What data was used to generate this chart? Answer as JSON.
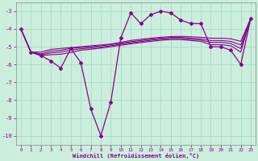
{
  "xlabel": "Windchill (Refroidissement éolien,°C)",
  "background_color": "#cceedd",
  "grid_color": "#aaddcc",
  "line_color": "#880088",
  "x_data": [
    0,
    1,
    2,
    3,
    4,
    5,
    6,
    7,
    8,
    9,
    10,
    11,
    12,
    13,
    14,
    15,
    16,
    17,
    18,
    19,
    20,
    21,
    22,
    23
  ],
  "y_main": [
    -4.0,
    -5.3,
    -5.5,
    -5.8,
    -6.2,
    -5.1,
    -5.9,
    -8.5,
    -10.0,
    -8.1,
    -4.5,
    -3.1,
    -3.7,
    -3.2,
    -3.0,
    -3.1,
    -3.5,
    -3.7,
    -3.7,
    -5.0,
    -5.0,
    -5.2,
    -6.0,
    -3.4
  ],
  "reg_lines": [
    [
      -4.0,
      -5.3,
      -5.3,
      -5.15,
      -5.1,
      -5.05,
      -5.0,
      -4.95,
      -4.9,
      -4.85,
      -4.75,
      -4.65,
      -4.58,
      -4.52,
      -4.47,
      -4.43,
      -4.42,
      -4.44,
      -4.47,
      -4.52,
      -4.52,
      -4.55,
      -4.7,
      -3.4
    ],
    [
      -4.0,
      -5.3,
      -5.4,
      -5.25,
      -5.2,
      -5.1,
      -5.05,
      -5.0,
      -4.95,
      -4.88,
      -4.8,
      -4.72,
      -4.65,
      -4.58,
      -4.52,
      -4.48,
      -4.48,
      -4.52,
      -4.56,
      -4.65,
      -4.65,
      -4.7,
      -4.9,
      -3.4
    ],
    [
      -4.0,
      -5.3,
      -5.45,
      -5.35,
      -5.3,
      -5.2,
      -5.12,
      -5.07,
      -5.02,
      -4.95,
      -4.86,
      -4.78,
      -4.71,
      -4.64,
      -4.58,
      -4.54,
      -4.54,
      -4.58,
      -4.63,
      -4.75,
      -4.75,
      -4.82,
      -5.1,
      -3.4
    ],
    [
      -4.0,
      -5.3,
      -5.5,
      -5.45,
      -5.42,
      -5.32,
      -5.2,
      -5.14,
      -5.08,
      -5.0,
      -4.92,
      -4.84,
      -4.77,
      -4.7,
      -4.64,
      -4.6,
      -4.6,
      -4.65,
      -4.7,
      -4.88,
      -4.88,
      -4.95,
      -5.3,
      -3.4
    ]
  ],
  "ylim": [
    -10.5,
    -2.5
  ],
  "xlim": [
    -0.5,
    23.5
  ],
  "yticks": [
    -10,
    -9,
    -8,
    -7,
    -6,
    -5,
    -4,
    -3
  ],
  "xticks": [
    0,
    1,
    2,
    3,
    4,
    5,
    6,
    7,
    8,
    9,
    10,
    11,
    12,
    13,
    14,
    15,
    16,
    17,
    18,
    19,
    20,
    21,
    22,
    23
  ]
}
